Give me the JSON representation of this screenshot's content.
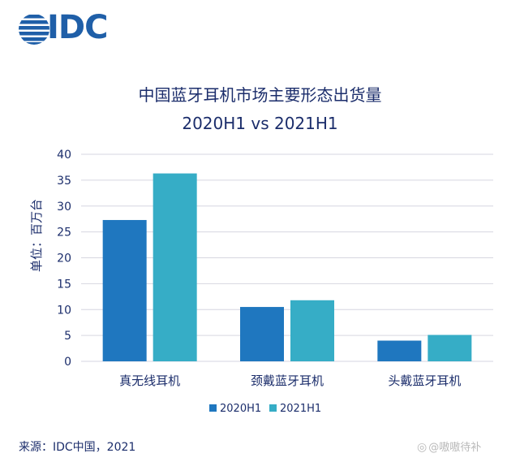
{
  "brand": {
    "logo_text": "IDC",
    "logo_color": "#1f5fa8"
  },
  "source_text": "来源：IDC中国，2021",
  "watermark": {
    "icon": "weibo-icon",
    "text": "@嗷嗷待补"
  },
  "chart_data": {
    "type": "bar",
    "title": "中国蓝牙耳机市场主要形态出货量",
    "subtitle": "2020H1 vs 2021H1",
    "ylabel": "单位：百万台",
    "xlabel": "",
    "categories": [
      "真无线耳机",
      "颈戴蓝牙耳机",
      "头戴蓝牙耳机"
    ],
    "series": [
      {
        "name": "2020H1",
        "values": [
          27.3,
          10.5,
          4.0
        ],
        "color": "#1f77bf"
      },
      {
        "name": "2021H1",
        "values": [
          36.3,
          11.8,
          5.1
        ],
        "color": "#36adc6"
      }
    ],
    "ylim": [
      0,
      40
    ],
    "yticks": [
      0,
      5,
      10,
      15,
      20,
      25,
      30,
      35,
      40
    ],
    "grid": true,
    "legend": "bottom-center"
  }
}
